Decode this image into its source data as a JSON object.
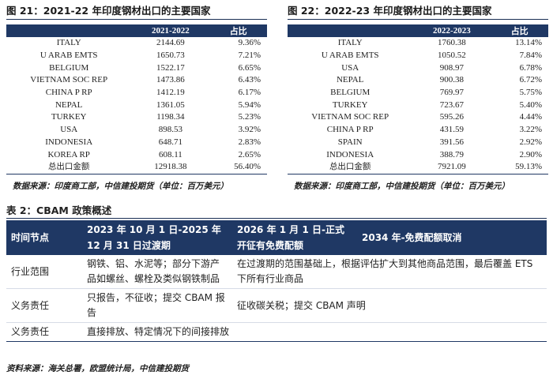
{
  "fig21": {
    "title": "图 21：2021-22 年印度钢材出口的主要国家",
    "header": [
      "",
      "2021-2022",
      "占比"
    ],
    "rows": [
      [
        "ITALY",
        "2144.69",
        "9.36%"
      ],
      [
        "U ARAB EMTS",
        "1650.73",
        "7.21%"
      ],
      [
        "BELGIUM",
        "1522.17",
        "6.65%"
      ],
      [
        "VIETNAM SOC REP",
        "1473.86",
        "6.43%"
      ],
      [
        "CHINA P RP",
        "1412.19",
        "6.17%"
      ],
      [
        "NEPAL",
        "1361.05",
        "5.94%"
      ],
      [
        "TURKEY",
        "1198.34",
        "5.23%"
      ],
      [
        "USA",
        "898.53",
        "3.92%"
      ],
      [
        "INDONESIA",
        "648.71",
        "2.83%"
      ],
      [
        "KOREA RP",
        "608.11",
        "2.65%"
      ],
      [
        "总出口金额",
        "12918.38",
        "56.40%"
      ]
    ],
    "source": "数据来源：印度商工部，中信建投期货（单位：百万美元）"
  },
  "fig22": {
    "title": "图 22：2022-23 年印度钢材出口的主要国家",
    "header": [
      "",
      "2022-2023",
      "占比"
    ],
    "rows": [
      [
        "ITALY",
        "1760.38",
        "13.14%"
      ],
      [
        "U ARAB EMTS",
        "1050.52",
        "7.84%"
      ],
      [
        "USA",
        "908.97",
        "6.78%"
      ],
      [
        "NEPAL",
        "900.38",
        "6.72%"
      ],
      [
        "BELGIUM",
        "769.97",
        "5.75%"
      ],
      [
        "TURKEY",
        "723.67",
        "5.40%"
      ],
      [
        "VIETNAM SOC REP",
        "595.26",
        "4.44%"
      ],
      [
        "CHINA P RP",
        "431.59",
        "3.22%"
      ],
      [
        "SPAIN",
        "391.56",
        "2.92%"
      ],
      [
        "INDONESIA",
        "388.79",
        "2.90%"
      ],
      [
        "总出口金额",
        "7921.09",
        "59.13%"
      ]
    ],
    "source": "数据来源：印度商工部，中信建投期货（单位：百万美元）"
  },
  "table2": {
    "title": "表 2：CBAM 政策概述",
    "header": [
      "时间节点",
      "2023 年 10 月 1 日-2025 年 12 月 31 日过渡期",
      "2026 年 1 月 1 日-正式开征有免费配额",
      "2034 年-免费配额取消"
    ],
    "rows": [
      {
        "label": "行业范围",
        "c1": "钢铁、铝、水泥等；部分下游产品如螺丝、螺栓及类似钢铁制品",
        "c23": "在过渡期的范围基础上，根据评估扩大到其他商品范围，最后覆盖 ETS 下所有行业商品"
      },
      {
        "label": "义务责任",
        "c1": "只报告，不征收；提交 CBAM 报告",
        "c23": "征收碳关税；提交 CBAM 声明"
      },
      {
        "label": "义务责任",
        "c123": "直接排放、特定情况下的间接排放"
      }
    ],
    "source": "资料来源：海关总署，欧盟统计局，中信建投期货"
  }
}
